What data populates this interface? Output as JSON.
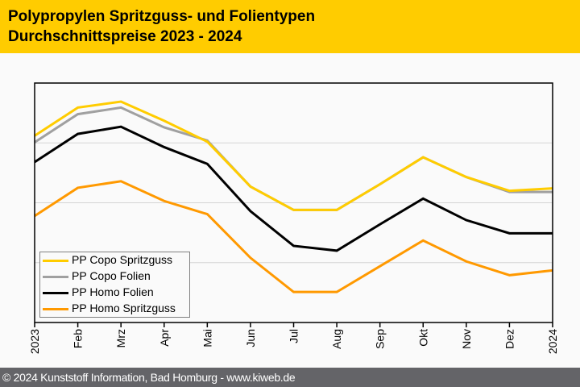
{
  "header": {
    "title_line1": "Polypropylen Spritzguss- und Folientypen",
    "title_line2": "Durchschnittspreise 2023 - 2024",
    "background": "#ffcc00"
  },
  "footer": {
    "text": "© 2024 Kunststoff Information, Bad Homburg - www.kiweb.de",
    "background": "#646468"
  },
  "chart_data": {
    "type": "line",
    "title": "Polypropylen Spritzguss- und Folientypen Durchschnittspreise 2023 - 2024",
    "xlabel": "",
    "ylabel": "",
    "y_axis_labels_shown": false,
    "y_units": "relative (unlabeled axis, 0 = bottom, 400 = top of plot)",
    "ylim": [
      0,
      400
    ],
    "y_gridlines": [
      100,
      200,
      300
    ],
    "grid": true,
    "legend_position": "bottom-left",
    "categories": [
      "2023",
      "Feb",
      "Mrz",
      "Apr",
      "Mai",
      "Jun",
      "Jul",
      "Aug",
      "Sep",
      "Okt",
      "Nov",
      "Dez",
      "2024"
    ],
    "series": [
      {
        "name": "PP Copo Spritzguss",
        "color": "#ffcc00",
        "values": [
          312,
          359,
          369,
          337,
          302,
          227,
          188,
          188,
          231,
          276,
          243,
          220,
          224
        ]
      },
      {
        "name": "PP Copo Folien",
        "color": "#a0a0a0",
        "values": [
          301,
          348,
          359,
          326,
          304,
          227,
          188,
          188,
          231,
          276,
          243,
          218,
          218
        ]
      },
      {
        "name": "PP Homo Folien",
        "color": "#000000",
        "values": [
          268,
          315,
          327,
          293,
          265,
          186,
          128,
          120,
          164,
          207,
          171,
          149,
          149
        ]
      },
      {
        "name": "PP Homo Spritzguss",
        "color": "#ff9900",
        "values": [
          178,
          225,
          236,
          203,
          181,
          108,
          51,
          51,
          94,
          137,
          102,
          79,
          87
        ]
      }
    ]
  }
}
